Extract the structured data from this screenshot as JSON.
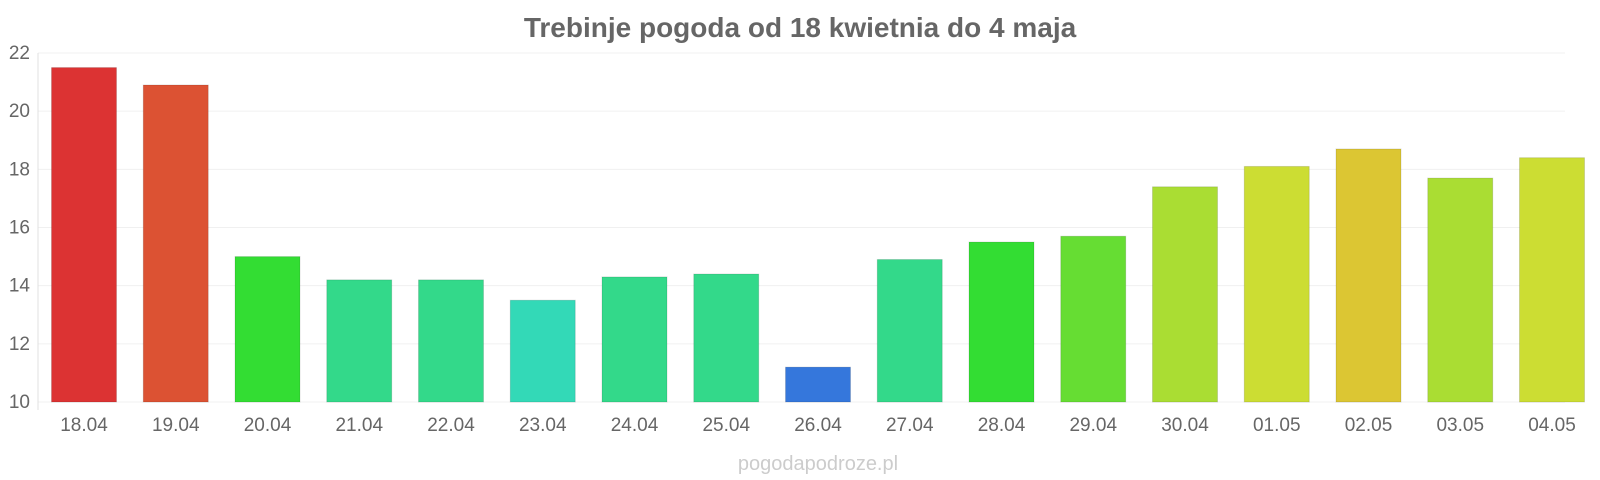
{
  "chart_data": {
    "type": "bar",
    "title": "Trebinje pogoda od 18 kwietnia do 4 maja",
    "xlabel": "",
    "ylabel": "",
    "categories": [
      "18.04",
      "19.04",
      "20.04",
      "21.04",
      "22.04",
      "23.04",
      "24.04",
      "25.04",
      "26.04",
      "27.04",
      "28.04",
      "29.04",
      "30.04",
      "01.05",
      "02.05",
      "03.05",
      "04.05"
    ],
    "values": [
      21.5,
      20.9,
      15.0,
      14.2,
      14.2,
      13.5,
      14.3,
      14.4,
      11.2,
      14.9,
      15.5,
      15.7,
      17.4,
      18.1,
      18.7,
      17.7,
      18.4
    ],
    "colors": [
      "#dc3333",
      "#dc5233",
      "#33dd33",
      "#33d98a",
      "#33d98a",
      "#33d9b7",
      "#33d98a",
      "#33d98a",
      "#3577dc",
      "#33d98a",
      "#33dd33",
      "#66dd33",
      "#aadd33",
      "#ccdd33",
      "#dcc633",
      "#aadd33",
      "#ccdd33"
    ],
    "ylim": [
      10,
      22
    ],
    "yticks": [
      10,
      12,
      14,
      16,
      18,
      20,
      22
    ],
    "grid": true,
    "legend": "none"
  },
  "footer": {
    "watermark": "pogodapodroze.pl"
  }
}
